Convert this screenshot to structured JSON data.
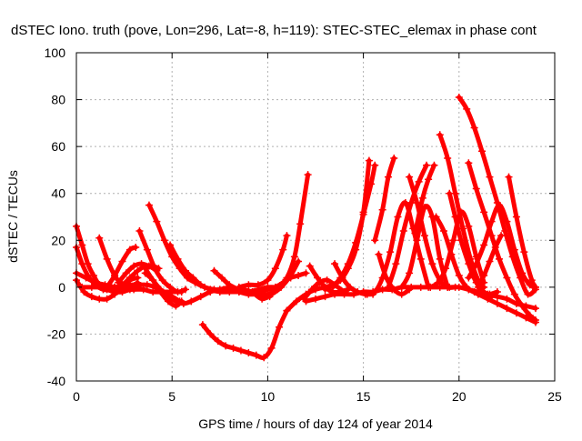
{
  "chart_data": {
    "type": "scatter",
    "title": "dSTEC Iono. truth (pove, Lon=296, Lat=-8, h=119): STEC-STEC_elemax in phase cont",
    "xlabel": "GPS time / hours of day 124 of year 2014",
    "ylabel": "dSTEC  / TECUs",
    "xlim": [
      0,
      25
    ],
    "ylim": [
      -40,
      100
    ],
    "xticks": [
      "0",
      "5",
      "10",
      "15",
      "20",
      "25"
    ],
    "yticks": [
      "-40",
      "-20",
      "0",
      "20",
      "40",
      "60",
      "80",
      "100"
    ],
    "grid": true,
    "marker": "+",
    "colors": {
      "series": "#ff0000",
      "grid": "#b0b0b0",
      "axis": "#000000"
    },
    "series": [
      {
        "x": [
          0,
          0.3,
          0.6,
          0.9,
          1.2,
          1.6,
          2.0,
          2.4,
          2.8,
          3.2
        ],
        "y": [
          26,
          18,
          10,
          5,
          1,
          -1,
          -2,
          -2,
          -1,
          0
        ]
      },
      {
        "x": [
          0,
          0.3,
          0.6,
          1.0,
          1.4,
          1.8,
          2.2
        ],
        "y": [
          17,
          10,
          5,
          1,
          -1,
          -1,
          0
        ]
      },
      {
        "x": [
          0,
          0.5,
          1.0,
          1.5,
          2.0,
          2.5,
          3.0,
          3.5,
          4.0,
          4.5,
          5.0,
          5.5
        ],
        "y": [
          6,
          4,
          2,
          1,
          0,
          -1,
          -1,
          -1,
          -2,
          -2,
          -2,
          -2
        ]
      },
      {
        "x": [
          0,
          0.4,
          0.8,
          1.2,
          1.6,
          2.0,
          2.4,
          2.8,
          3.2
        ],
        "y": [
          3,
          -2,
          -4,
          -5,
          -5,
          -3,
          0,
          3,
          4
        ]
      },
      {
        "x": [
          0.3,
          0.8,
          1.3,
          1.8,
          2.3,
          2.8,
          3.2,
          3.7,
          4.1,
          4.5,
          5.0,
          5.4
        ],
        "y": [
          0,
          0,
          0,
          0,
          0,
          1,
          1,
          1,
          0,
          -2,
          -4,
          -6
        ]
      },
      {
        "x": [
          1.2,
          1.6,
          2.0,
          2.4,
          2.8,
          3.2
        ],
        "y": [
          21,
          12,
          5,
          1,
          0,
          2
        ]
      },
      {
        "x": [
          1.6,
          2.0,
          2.4,
          2.8,
          3.1
        ],
        "y": [
          0,
          5,
          11,
          16,
          17
        ]
      },
      {
        "x": [
          1.2,
          1.6,
          2.0,
          2.4,
          2.8,
          3.2,
          3.6,
          4.0,
          4.3
        ],
        "y": [
          1,
          0,
          0,
          1,
          4,
          7,
          9,
          9,
          8
        ]
      },
      {
        "x": [
          2.2,
          2.6,
          3.0,
          3.4,
          3.8,
          4.2
        ],
        "y": [
          2,
          6,
          9,
          10,
          9,
          7
        ]
      },
      {
        "x": [
          3.3,
          3.7,
          4.1,
          4.5,
          4.9,
          5.3,
          5.7
        ],
        "y": [
          24,
          16,
          8,
          3,
          0,
          -2,
          -1
        ]
      },
      {
        "x": [
          3.6,
          4.0,
          4.4,
          4.8,
          5.2,
          5.5
        ],
        "y": [
          6,
          3,
          -2,
          -6,
          -8,
          -6
        ]
      },
      {
        "x": [
          3.6,
          4.0,
          4.4,
          4.8,
          5.2,
          5.6,
          6.0,
          6.5,
          7.0,
          7.5,
          8.0
        ],
        "y": [
          8,
          3,
          -1,
          -4,
          -6,
          -7,
          -6,
          -4,
          -2,
          -1,
          0
        ]
      },
      {
        "x": [
          3.8,
          4.2,
          4.6,
          5.0,
          5.4,
          5.8,
          6.2,
          6.7,
          7.2,
          7.7,
          8.2,
          8.7,
          9.2,
          9.7,
          10.1
        ],
        "y": [
          35,
          28,
          20,
          13,
          8,
          4,
          2,
          0,
          -1,
          -1,
          -1,
          -1,
          -2,
          -3,
          -4
        ]
      },
      {
        "x": [
          4.9,
          5.3,
          5.7,
          6.1,
          6.5,
          7.0,
          7.5,
          8.0,
          8.5,
          9.0,
          9.5,
          10.0,
          10.5
        ],
        "y": [
          18,
          12,
          7,
          4,
          1,
          -1,
          -2,
          -2,
          -2,
          -2,
          -1,
          0,
          0
        ]
      },
      {
        "x": [
          6.6,
          7.0,
          7.4,
          7.8,
          8.2,
          8.6,
          9.0,
          9.4,
          9.8,
          10.2,
          10.6,
          11.0
        ],
        "y": [
          -16,
          -20,
          -23,
          -25,
          -26,
          -27,
          -28,
          -29,
          -30,
          -26,
          -17,
          -10
        ]
      },
      {
        "x": [
          7.2,
          7.6,
          8.0,
          8.5,
          9.0,
          9.5,
          10.0,
          10.4,
          10.8,
          11.2,
          11.6,
          12.0
        ],
        "y": [
          7,
          4,
          1,
          -1,
          -2,
          -2,
          -1,
          0,
          2,
          4,
          5,
          6
        ]
      },
      {
        "x": [
          8.5,
          9.0,
          9.5,
          10.0,
          10.4,
          10.8,
          11.0
        ],
        "y": [
          0,
          1,
          1,
          3,
          8,
          16,
          22
        ]
      },
      {
        "x": [
          8.5,
          9.0,
          9.5,
          10.0,
          10.5,
          11.0,
          11.4,
          11.7,
          12.1
        ],
        "y": [
          -2,
          -3,
          -3,
          -3,
          -1,
          4,
          13,
          27,
          48
        ]
      },
      {
        "x": [
          9.2,
          9.7,
          10.2,
          10.7,
          11.2,
          11.6
        ],
        "y": [
          -2,
          -5,
          -3,
          0,
          5,
          11
        ]
      },
      {
        "x": [
          11.0,
          11.5,
          12.0,
          12.5,
          13.0,
          13.4
        ],
        "y": [
          -10,
          -6,
          -3,
          -1,
          0,
          1
        ]
      },
      {
        "x": [
          11.9,
          12.3,
          12.7,
          13.1,
          13.5,
          14.0
        ],
        "y": [
          -5,
          -1,
          2,
          3,
          1,
          -2
        ]
      },
      {
        "x": [
          12.2,
          12.6,
          13.0,
          13.4,
          13.8,
          14.2
        ],
        "y": [
          9,
          4,
          0,
          -2,
          -2,
          -1
        ]
      },
      {
        "x": [
          12.0,
          12.5,
          13.0,
          13.5,
          14.0,
          14.5,
          15.0,
          15.5,
          16.0,
          16.5,
          17.0,
          17.5,
          18.0,
          18.5,
          19.0,
          19.5,
          20.0,
          20.5,
          21.0,
          21.5,
          22.0,
          22.5,
          23.0,
          23.5,
          24.0
        ],
        "y": [
          -6,
          -5,
          -4,
          -3,
          -3,
          -3,
          -2,
          -2,
          -1,
          -1,
          0,
          0,
          0,
          0,
          0,
          0,
          0,
          -1,
          -2,
          -3,
          -4,
          -5,
          -7,
          -8,
          -9
        ]
      },
      {
        "x": [
          13.0,
          13.4,
          13.8,
          14.2,
          14.6,
          15.0,
          15.3
        ],
        "y": [
          -1,
          1,
          3,
          8,
          16,
          32,
          54
        ]
      },
      {
        "x": [
          13.5,
          13.9,
          14.3,
          14.7,
          15.1,
          15.5
        ],
        "y": [
          10,
          4,
          0,
          -2,
          -3,
          -3
        ]
      },
      {
        "x": [
          13.4,
          13.8,
          14.2,
          14.6,
          15.0,
          15.4,
          15.6
        ],
        "y": [
          0,
          4,
          10,
          19,
          31,
          44,
          52
        ]
      },
      {
        "x": [
          15.2,
          15.6,
          16.0,
          16.4,
          16.8,
          17.2,
          17.6,
          18.0,
          18.4
        ],
        "y": [
          -3,
          -2,
          4,
          15,
          30,
          36,
          25,
          12,
          0
        ]
      },
      {
        "x": [
          15.6,
          16.0,
          16.3,
          16.6
        ],
        "y": [
          20,
          33,
          47,
          55
        ]
      },
      {
        "x": [
          15.8,
          16.2,
          16.6,
          17.0,
          17.4
        ],
        "y": [
          14,
          4,
          -1,
          -3,
          -1
        ]
      },
      {
        "x": [
          16.3,
          16.7,
          17.1,
          17.5,
          17.9,
          18.3
        ],
        "y": [
          0,
          10,
          24,
          36,
          45,
          52
        ]
      },
      {
        "x": [
          17.0,
          17.4,
          17.8,
          18.2,
          18.6,
          19.0,
          19.4
        ],
        "y": [
          0,
          6,
          20,
          34,
          30,
          12,
          0
        ]
      },
      {
        "x": [
          17.4,
          17.8,
          18.2,
          18.6,
          19.0,
          19.4,
          19.8
        ],
        "y": [
          47,
          36,
          22,
          10,
          3,
          0,
          0
        ]
      },
      {
        "x": [
          17.7,
          18.1,
          18.4,
          18.7
        ],
        "y": [
          23,
          38,
          46,
          52
        ]
      },
      {
        "x": [
          18.8,
          19.2,
          19.6,
          20.0,
          20.4,
          20.8,
          21.2,
          21.6,
          22.0
        ],
        "y": [
          30,
          24,
          14,
          5,
          0,
          -2,
          -3,
          -3,
          -2
        ]
      },
      {
        "x": [
          18.5,
          18.9,
          19.3,
          19.7,
          20.1,
          20.5,
          20.9,
          21.3
        ],
        "y": [
          0,
          2,
          8,
          20,
          32,
          26,
          13,
          2
        ]
      },
      {
        "x": [
          19.0,
          19.4,
          19.8,
          20.2,
          20.6,
          21.0,
          21.3
        ],
        "y": [
          65,
          55,
          40,
          25,
          12,
          3,
          0
        ]
      },
      {
        "x": [
          19.5,
          19.8,
          20.1,
          20.5,
          20.9,
          21.3,
          21.7
        ],
        "y": [
          40,
          30,
          20,
          10,
          2,
          -2,
          -4
        ]
      },
      {
        "x": [
          20.0,
          20.4,
          20.8,
          21.2,
          21.6,
          22.0,
          22.4,
          22.8,
          23.2,
          23.6,
          24.0
        ],
        "y": [
          81,
          76,
          68,
          58,
          47,
          36,
          24,
          13,
          4,
          -3,
          -1
        ]
      },
      {
        "x": [
          20.5,
          20.9,
          21.3,
          21.7,
          22.1,
          22.5,
          22.9,
          23.3,
          23.7,
          24.0
        ],
        "y": [
          53,
          42,
          32,
          22,
          12,
          4,
          -3,
          -8,
          -12,
          -14
        ]
      },
      {
        "x": [
          20.5,
          20.9,
          21.3,
          21.7,
          22.1,
          22.5,
          22.9,
          23.3,
          23.7,
          24.0
        ],
        "y": [
          4,
          10,
          18,
          28,
          35,
          28,
          16,
          6,
          1,
          0
        ]
      },
      {
        "x": [
          21.0,
          21.3,
          21.6,
          21.9,
          22.2
        ],
        "y": [
          0,
          5,
          11,
          17,
          22
        ]
      },
      {
        "x": [
          22.6,
          23.0,
          23.4,
          23.8,
          24.0
        ],
        "y": [
          47,
          30,
          15,
          3,
          0
        ]
      },
      {
        "x": [
          20.5,
          21.0,
          21.5,
          22.0,
          22.5,
          23.0,
          23.5,
          24.0
        ],
        "y": [
          -1,
          -3,
          -5,
          -7,
          -9,
          -11,
          -13,
          -15
        ]
      }
    ]
  }
}
